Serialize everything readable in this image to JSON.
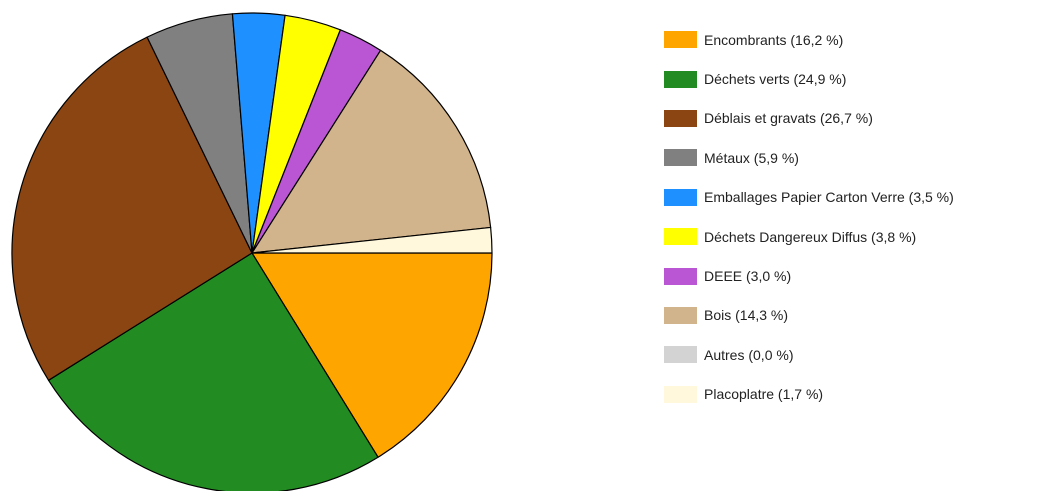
{
  "chart_data": {
    "type": "pie",
    "title": "",
    "start_angle_deg": 0,
    "direction": "clockwise",
    "legend_position": "right",
    "slices": [
      {
        "label": "Encombrants (16,2 %)",
        "name": "Encombrants",
        "value": 16.2,
        "color": "#ffa500"
      },
      {
        "label": "Déchets verts (24,9 %)",
        "name": "Déchets verts",
        "value": 24.9,
        "color": "#228b22"
      },
      {
        "label": "Déblais et gravats (26,7 %)",
        "name": "Déblais et gravats",
        "value": 26.7,
        "color": "#8b4513"
      },
      {
        "label": "Métaux (5,9 %)",
        "name": "Métaux",
        "value": 5.9,
        "color": "#808080"
      },
      {
        "label": "Emballages Papier Carton Verre (3,5 %)",
        "name": "Emballages Papier Carton Verre",
        "value": 3.5,
        "color": "#1e90ff"
      },
      {
        "label": "Déchets Dangereux Diffus (3,8 %)",
        "name": "Déchets Dangereux Diffus",
        "value": 3.8,
        "color": "#ffff00"
      },
      {
        "label": "DEEE (3,0 %)",
        "name": "DEEE",
        "value": 3.0,
        "color": "#ba55d3"
      },
      {
        "label": "Bois (14,3 %)",
        "name": "Bois",
        "value": 14.3,
        "color": "#d2b48c"
      },
      {
        "label": "Autres (0,0 %)",
        "name": "Autres",
        "value": 0.0,
        "color": "#d3d3d3"
      },
      {
        "label": "Placoplatre (1,7 %)",
        "name": "Placoplatre",
        "value": 1.7,
        "color": "#fff8dc"
      }
    ]
  }
}
